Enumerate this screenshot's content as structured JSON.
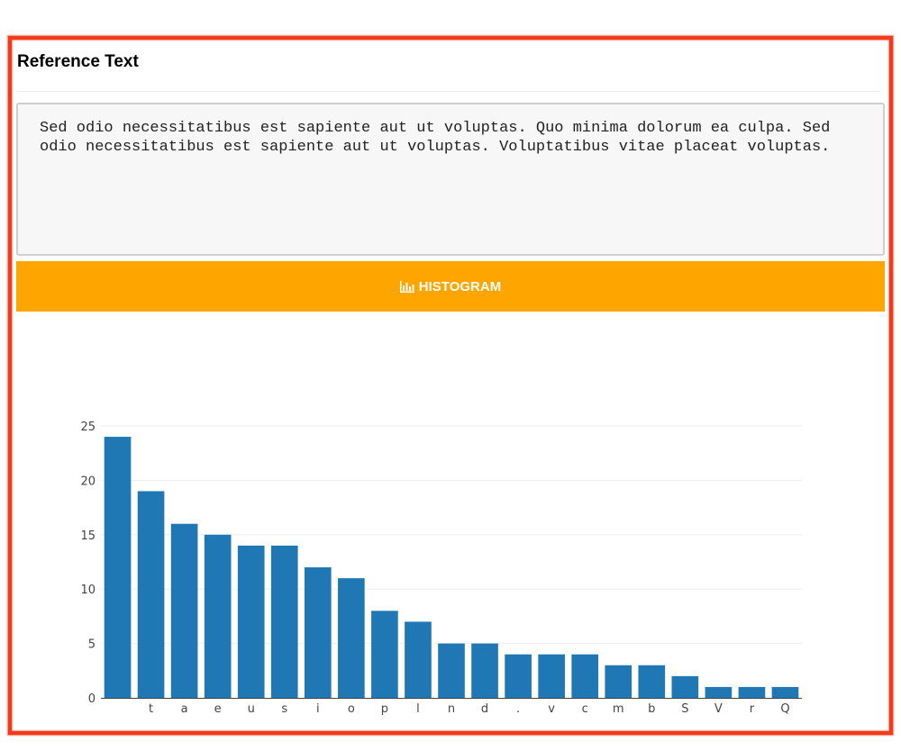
{
  "panel": {
    "title": "Reference Text",
    "reference_text": "Sed odio necessitatibus est sapiente aut ut voluptas. Quo minima dolorum ea culpa. Sed odio necessitatibus est sapiente aut ut voluptas. Voluptatibus vitae placeat voluptas.",
    "histogram_button": {
      "label": "HISTOGRAM",
      "icon": "bar-chart-icon",
      "color": "#ffa500"
    }
  },
  "chart_data": {
    "type": "bar",
    "categories": [
      " ",
      "t",
      "a",
      "e",
      "u",
      "s",
      "i",
      "o",
      "p",
      "l",
      "n",
      "d",
      ".",
      "v",
      "c",
      "m",
      "b",
      "S",
      "V",
      "r",
      "Q"
    ],
    "values": [
      24,
      19,
      16,
      15,
      14,
      14,
      12,
      11,
      8,
      7,
      5,
      5,
      4,
      4,
      4,
      3,
      3,
      2,
      1,
      1,
      1
    ],
    "ylim": [
      0,
      25
    ],
    "yticks": [
      0,
      5,
      10,
      15,
      20,
      25
    ],
    "grid": true,
    "bar_color": "#1f77b4"
  }
}
